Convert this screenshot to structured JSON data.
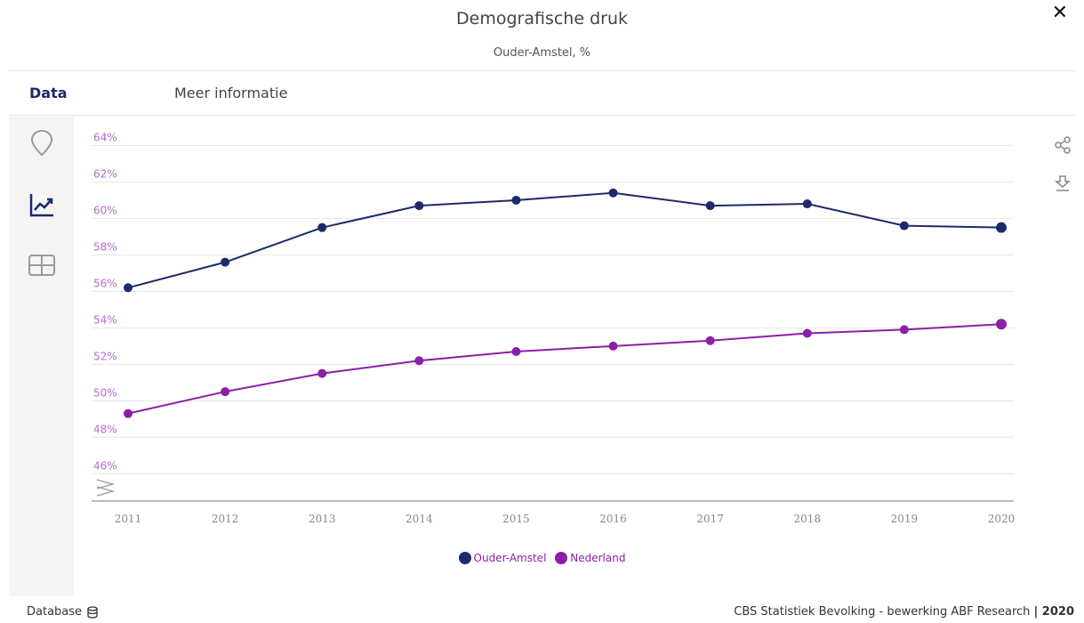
{
  "header": {
    "title": "Demografische druk",
    "subtitle": "Ouder-Amstel, %",
    "close_label": "✕"
  },
  "tabs": [
    {
      "label": "Data"
    },
    {
      "label": "Meer informatie"
    }
  ],
  "sidebar": {
    "icons": [
      "map-pin-icon",
      "line-chart-icon",
      "table-icon"
    ]
  },
  "chart_data": {
    "type": "line",
    "x": [
      "2011",
      "2012",
      "2013",
      "2014",
      "2015",
      "2016",
      "2017",
      "2018",
      "2019",
      "2020"
    ],
    "series": [
      {
        "name": "Ouder-Amstel",
        "color": "#1c2a6b",
        "values": [
          56.2,
          57.6,
          59.5,
          60.7,
          61.0,
          61.4,
          60.7,
          60.8,
          59.6,
          59.5
        ]
      },
      {
        "name": "Nederland",
        "color": "#8b1fa8",
        "values": [
          49.3,
          50.5,
          51.5,
          52.2,
          52.7,
          53.0,
          53.3,
          53.7,
          53.9,
          54.2
        ]
      }
    ],
    "yticks": [
      "46%",
      "48%",
      "50%",
      "52%",
      "54%",
      "56%",
      "58%",
      "60%",
      "62%",
      "64%"
    ],
    "ylim": [
      44.5,
      65
    ],
    "grid": true,
    "legend_position": "bottom"
  },
  "footer": {
    "database_label": "Database",
    "source_text": "CBS Statistiek Bevolking - bewerking ABF Research ",
    "source_year": "| 2020"
  },
  "colors": {
    "primary": "#1c2a6b",
    "secondary": "#8b1fa8",
    "axis_label": "#b86ad0",
    "grid": "#e6e6e6",
    "sidebar_bg": "#f4f4f4"
  }
}
